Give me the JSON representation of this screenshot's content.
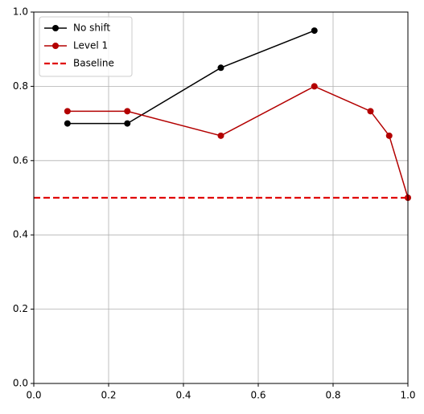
{
  "chart_data": {
    "type": "line",
    "xlim": [
      0,
      1
    ],
    "ylim": [
      0,
      1
    ],
    "xticks": [
      {
        "value": 0,
        "label": "0.0"
      },
      {
        "value": 0.2,
        "label": "0.2"
      },
      {
        "value": 0.4,
        "label": "0.4"
      },
      {
        "value": 0.6,
        "label": "0.6"
      },
      {
        "value": 0.8,
        "label": "0.8"
      },
      {
        "value": 1,
        "label": "1.0"
      }
    ],
    "yticks": [
      {
        "value": 0,
        "label": "0.0"
      },
      {
        "value": 0.2,
        "label": "0.2"
      },
      {
        "value": 0.4,
        "label": "0.4"
      },
      {
        "value": 0.6,
        "label": "0.6"
      },
      {
        "value": 0.8,
        "label": "0.8"
      },
      {
        "value": 1,
        "label": "1.0"
      }
    ],
    "grid": true,
    "legend": "upper-left",
    "series": [
      {
        "name": "No shift",
        "color": "#000000",
        "marker": true,
        "linestyle": "solid",
        "x": [
          0.09,
          0.25,
          0.5,
          0.75
        ],
        "values": [
          0.7,
          0.7,
          0.85,
          0.95
        ]
      },
      {
        "name": "Level 1",
        "color": "#b30000",
        "marker": true,
        "linestyle": "solid",
        "x": [
          0.09,
          0.25,
          0.5,
          0.75,
          0.9,
          0.95,
          1.0
        ],
        "values": [
          0.733,
          0.733,
          0.667,
          0.8,
          0.733,
          0.667,
          0.5
        ]
      },
      {
        "name": "Baseline",
        "color": "#e00000",
        "marker": false,
        "linestyle": "dashed",
        "x": [
          0,
          1
        ],
        "values": [
          0.5,
          0.5
        ]
      }
    ]
  }
}
